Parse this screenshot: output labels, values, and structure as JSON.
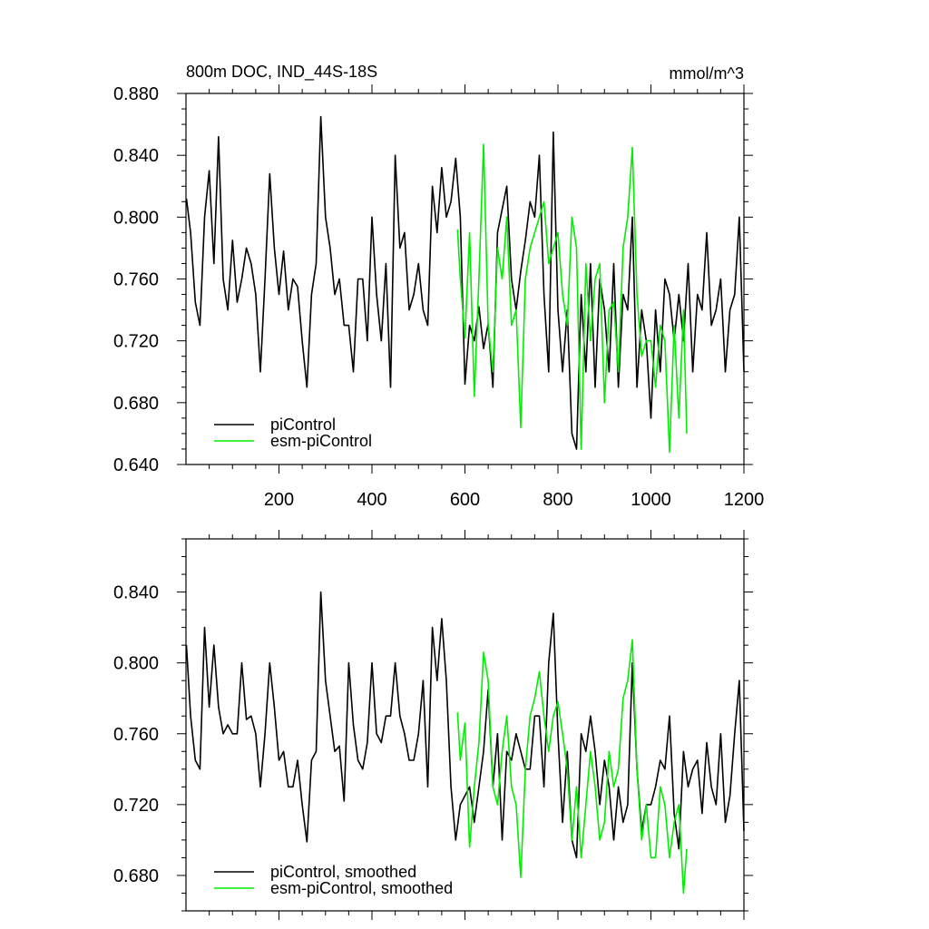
{
  "title": "800m DOC, IND_44S-18S",
  "units": "mmol/m^3",
  "colors": {
    "piControl": "#000000",
    "esm-piControl": "#00ee00",
    "frame": "#000000",
    "background": "#ffffff"
  },
  "chart_data": [
    {
      "type": "line",
      "panel": "top",
      "title": "800m DOC, IND_44S-18S",
      "units": "mmol/m^3",
      "xlabel": "",
      "ylabel": "",
      "xlim": [
        0,
        1200
      ],
      "ylim": [
        0.64,
        0.88
      ],
      "xticks": [
        200,
        400,
        600,
        800,
        1000,
        1200
      ],
      "xtick_labels": [
        "200",
        "400",
        "600",
        "800",
        "1000",
        "1200"
      ],
      "yticks": [
        0.64,
        0.68,
        0.72,
        0.76,
        0.8,
        0.84,
        0.88
      ],
      "ytick_labels": [
        "0.640",
        "0.680",
        "0.720",
        "0.760",
        "0.800",
        "0.840",
        "0.880"
      ],
      "grid": false,
      "legend_position": "bottom-left",
      "series": [
        {
          "name": "piControl",
          "color": "#000000",
          "x": [
            1,
            10,
            20,
            30,
            40,
            50,
            60,
            70,
            80,
            90,
            100,
            110,
            120,
            130,
            140,
            150,
            160,
            170,
            180,
            190,
            200,
            210,
            220,
            230,
            240,
            250,
            260,
            270,
            280,
            290,
            300,
            310,
            320,
            330,
            340,
            350,
            360,
            370,
            380,
            390,
            400,
            410,
            420,
            430,
            440,
            450,
            460,
            470,
            480,
            490,
            500,
            510,
            520,
            530,
            540,
            550,
            560,
            570,
            580,
            590,
            600,
            610,
            620,
            630,
            640,
            650,
            660,
            670,
            680,
            690,
            700,
            710,
            720,
            730,
            740,
            750,
            760,
            770,
            780,
            790,
            800,
            810,
            820,
            830,
            840,
            850,
            860,
            870,
            880,
            890,
            900,
            910,
            920,
            930,
            940,
            950,
            960,
            970,
            980,
            990,
            1000,
            1010,
            1020,
            1030,
            1040,
            1050,
            1060,
            1070,
            1080,
            1090,
            1100,
            1110,
            1120,
            1130,
            1140,
            1150,
            1160,
            1170,
            1180,
            1190,
            1200
          ],
          "values": [
            0.812,
            0.79,
            0.745,
            0.73,
            0.8,
            0.83,
            0.77,
            0.852,
            0.76,
            0.74,
            0.785,
            0.745,
            0.76,
            0.78,
            0.77,
            0.75,
            0.7,
            0.76,
            0.828,
            0.78,
            0.75,
            0.778,
            0.74,
            0.76,
            0.755,
            0.72,
            0.69,
            0.75,
            0.77,
            0.865,
            0.8,
            0.78,
            0.75,
            0.76,
            0.73,
            0.73,
            0.7,
            0.76,
            0.76,
            0.72,
            0.8,
            0.75,
            0.72,
            0.77,
            0.69,
            0.84,
            0.78,
            0.79,
            0.74,
            0.75,
            0.77,
            0.74,
            0.73,
            0.82,
            0.79,
            0.832,
            0.8,
            0.81,
            0.838,
            0.8,
            0.692,
            0.73,
            0.72,
            0.742,
            0.715,
            0.731,
            0.69,
            0.79,
            0.805,
            0.82,
            0.76,
            0.74,
            0.765,
            0.785,
            0.81,
            0.8,
            0.84,
            0.75,
            0.7,
            0.855,
            0.74,
            0.7,
            0.74,
            0.66,
            0.65,
            0.75,
            0.7,
            0.77,
            0.69,
            0.76,
            0.74,
            0.7,
            0.77,
            0.69,
            0.75,
            0.74,
            0.8,
            0.69,
            0.74,
            0.72,
            0.67,
            0.74,
            0.7,
            0.76,
            0.75,
            0.72,
            0.75,
            0.72,
            0.77,
            0.7,
            0.75,
            0.74,
            0.79,
            0.73,
            0.74,
            0.76,
            0.7,
            0.74,
            0.75,
            0.8,
            0.7
          ]
        },
        {
          "name": "esm-piControl",
          "color": "#00ee00",
          "x": [
            584,
            590,
            600,
            610,
            620,
            630,
            640,
            650,
            660,
            670,
            680,
            690,
            700,
            710,
            720,
            730,
            740,
            750,
            760,
            770,
            780,
            790,
            800,
            810,
            820,
            830,
            840,
            850,
            860,
            870,
            880,
            890,
            900,
            910,
            920,
            930,
            940,
            950,
            960,
            970,
            980,
            990,
            1000,
            1010,
            1020,
            1030,
            1040,
            1050,
            1060,
            1070,
            1077
          ],
          "values": [
            0.792,
            0.76,
            0.722,
            0.79,
            0.684,
            0.76,
            0.847,
            0.73,
            0.7,
            0.78,
            0.76,
            0.8,
            0.73,
            0.74,
            0.664,
            0.76,
            0.78,
            0.79,
            0.8,
            0.81,
            0.77,
            0.78,
            0.79,
            0.75,
            0.73,
            0.8,
            0.78,
            0.65,
            0.77,
            0.72,
            0.76,
            0.77,
            0.68,
            0.74,
            0.745,
            0.7,
            0.78,
            0.8,
            0.845,
            0.75,
            0.71,
            0.72,
            0.72,
            0.69,
            0.73,
            0.72,
            0.648,
            0.73,
            0.67,
            0.74,
            0.66
          ]
        }
      ]
    },
    {
      "type": "line",
      "panel": "bottom",
      "title": "",
      "xlabel": "",
      "ylabel": "",
      "xlim": [
        0,
        1200
      ],
      "ylim": [
        0.66,
        0.87
      ],
      "yticks": [
        0.68,
        0.72,
        0.76,
        0.8,
        0.84
      ],
      "ytick_labels": [
        "0.680",
        "0.720",
        "0.760",
        "0.800",
        "0.840"
      ],
      "grid": false,
      "legend_position": "bottom-left",
      "series": [
        {
          "name": "piControl, smoothed",
          "color": "#000000",
          "x": [
            1,
            10,
            20,
            30,
            40,
            50,
            60,
            70,
            80,
            90,
            100,
            110,
            120,
            130,
            140,
            150,
            160,
            170,
            180,
            190,
            200,
            210,
            220,
            230,
            240,
            250,
            260,
            270,
            280,
            290,
            300,
            310,
            320,
            330,
            340,
            350,
            360,
            370,
            380,
            390,
            400,
            410,
            420,
            430,
            440,
            450,
            460,
            470,
            480,
            490,
            500,
            510,
            520,
            530,
            540,
            550,
            560,
            570,
            580,
            590,
            600,
            610,
            620,
            630,
            640,
            650,
            660,
            670,
            680,
            690,
            700,
            710,
            720,
            730,
            740,
            750,
            760,
            770,
            780,
            790,
            800,
            810,
            820,
            830,
            840,
            850,
            860,
            870,
            880,
            890,
            900,
            910,
            920,
            930,
            940,
            950,
            960,
            970,
            980,
            990,
            1000,
            1010,
            1020,
            1030,
            1040,
            1050,
            1060,
            1070,
            1080,
            1090,
            1100,
            1110,
            1120,
            1130,
            1140,
            1150,
            1160,
            1170,
            1180,
            1190,
            1200
          ],
          "values": [
            0.81,
            0.77,
            0.745,
            0.74,
            0.82,
            0.775,
            0.81,
            0.775,
            0.76,
            0.765,
            0.76,
            0.76,
            0.8,
            0.768,
            0.77,
            0.76,
            0.73,
            0.76,
            0.8,
            0.775,
            0.745,
            0.75,
            0.73,
            0.73,
            0.745,
            0.72,
            0.699,
            0.745,
            0.75,
            0.84,
            0.79,
            0.77,
            0.75,
            0.753,
            0.722,
            0.8,
            0.765,
            0.745,
            0.74,
            0.755,
            0.8,
            0.76,
            0.755,
            0.77,
            0.77,
            0.8,
            0.77,
            0.76,
            0.745,
            0.745,
            0.76,
            0.79,
            0.73,
            0.82,
            0.79,
            0.825,
            0.79,
            0.73,
            0.7,
            0.72,
            0.725,
            0.73,
            0.71,
            0.73,
            0.75,
            0.785,
            0.73,
            0.76,
            0.7,
            0.75,
            0.745,
            0.76,
            0.75,
            0.74,
            0.74,
            0.77,
            0.77,
            0.73,
            0.8,
            0.828,
            0.76,
            0.71,
            0.75,
            0.7,
            0.69,
            0.76,
            0.75,
            0.77,
            0.75,
            0.72,
            0.745,
            0.73,
            0.7,
            0.73,
            0.71,
            0.72,
            0.8,
            0.74,
            0.705,
            0.72,
            0.72,
            0.73,
            0.745,
            0.74,
            0.77,
            0.715,
            0.695,
            0.75,
            0.73,
            0.74,
            0.745,
            0.715,
            0.755,
            0.73,
            0.72,
            0.76,
            0.71,
            0.725,
            0.76,
            0.79,
            0.705
          ]
        },
        {
          "name": "esm-piControl, smoothed",
          "color": "#00ee00",
          "x": [
            584,
            590,
            600,
            610,
            620,
            630,
            640,
            650,
            660,
            670,
            680,
            690,
            700,
            710,
            720,
            730,
            740,
            750,
            760,
            770,
            780,
            790,
            800,
            810,
            820,
            830,
            840,
            850,
            860,
            870,
            880,
            890,
            900,
            910,
            920,
            930,
            940,
            950,
            960,
            970,
            980,
            990,
            1000,
            1010,
            1020,
            1030,
            1040,
            1050,
            1060,
            1070,
            1077
          ],
          "values": [
            0.772,
            0.745,
            0.766,
            0.696,
            0.73,
            0.755,
            0.806,
            0.79,
            0.73,
            0.72,
            0.75,
            0.77,
            0.73,
            0.72,
            0.679,
            0.74,
            0.77,
            0.78,
            0.795,
            0.77,
            0.75,
            0.77,
            0.778,
            0.76,
            0.74,
            0.7,
            0.73,
            0.69,
            0.72,
            0.75,
            0.73,
            0.7,
            0.71,
            0.75,
            0.73,
            0.74,
            0.78,
            0.79,
            0.813,
            0.74,
            0.7,
            0.72,
            0.69,
            0.69,
            0.73,
            0.72,
            0.69,
            0.71,
            0.72,
            0.67,
            0.695
          ]
        }
      ]
    }
  ]
}
